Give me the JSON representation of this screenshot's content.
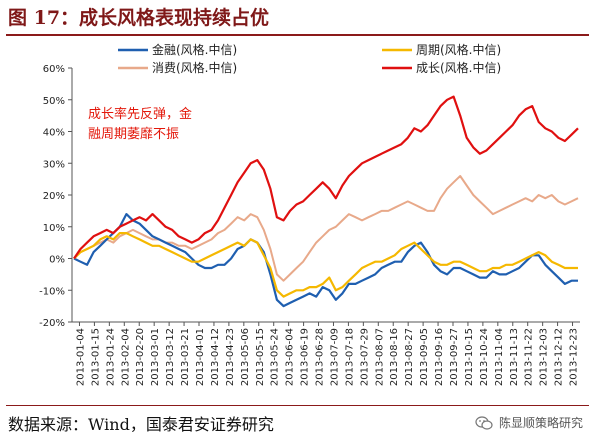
{
  "header": {
    "title": "图 17：成长风格表现持续占优"
  },
  "footer": {
    "source": "数据来源：Wind，国泰君安证券研究",
    "watermark": "陈显顺策略研究"
  },
  "icons": {
    "watermark_icon": "wechat-icon"
  },
  "chart_data": {
    "type": "line",
    "title": "",
    "xlabel": "",
    "ylabel": "",
    "ylim": [
      -20,
      60
    ],
    "y_ticks": [
      "-20%",
      "-10%",
      "0%",
      "10%",
      "20%",
      "30%",
      "40%",
      "50%",
      "60%"
    ],
    "x_ticks": [
      "2013-01-04",
      "2013-01-15",
      "2013-01-24",
      "2013-02-04",
      "2013-02-20",
      "2013-03-01",
      "2013-03-12",
      "2013-03-21",
      "2013-04-01",
      "2013-04-12",
      "2013-04-23",
      "2013-05-06",
      "2013-05-15",
      "2013-05-24",
      "2013-06-04",
      "2013-06-19",
      "2013-06-28",
      "2013-07-09",
      "2013-07-18",
      "2013-07-29",
      "2013-08-07",
      "2013-08-16",
      "2013-08-27",
      "2013-09-05",
      "2013-09-16",
      "2013-09-27",
      "2013-10-15",
      "2013-10-24",
      "2013-11-04",
      "2013-11-13",
      "2013-11-22",
      "2013-12-03",
      "2013-12-12",
      "2013-12-23"
    ],
    "legend_position": "top",
    "grid": false,
    "annotation": {
      "lines": [
        "成长率先反弹，金",
        "融周期萎靡不振"
      ],
      "color": "#e3170a"
    },
    "series": [
      {
        "name": "金融(风格.中信)",
        "color": "#1f5fb0",
        "values": [
          0,
          -1,
          -2,
          2,
          4,
          6,
          8,
          10,
          14,
          12,
          11,
          9,
          7,
          6,
          5,
          4,
          3,
          2,
          0,
          -2,
          -3,
          -3,
          -2,
          -2,
          0,
          3,
          4,
          6,
          5,
          2,
          -5,
          -13,
          -15,
          -14,
          -13,
          -12,
          -11,
          -12,
          -9,
          -10,
          -13,
          -11,
          -8,
          -8,
          -7,
          -6,
          -5,
          -3,
          -2,
          -1,
          -1,
          2,
          4,
          5,
          2,
          -2,
          -4,
          -5,
          -3,
          -3,
          -4,
          -5,
          -6,
          -6,
          -4,
          -5,
          -5,
          -4,
          -3,
          -1,
          1,
          1,
          -2,
          -4,
          -6,
          -8,
          -7,
          -7
        ]
      },
      {
        "name": "周期(风格.中信)",
        "color": "#f5b800",
        "values": [
          0,
          2,
          3,
          4,
          6,
          7,
          6,
          8,
          8,
          7,
          6,
          5,
          4,
          4,
          3,
          2,
          1,
          0,
          -1,
          -1,
          0,
          1,
          2,
          3,
          4,
          5,
          4,
          6,
          5,
          1,
          -3,
          -10,
          -12,
          -11,
          -10,
          -10,
          -9,
          -9,
          -8,
          -6,
          -10,
          -9,
          -7,
          -5,
          -3,
          -2,
          -1,
          -1,
          0,
          1,
          3,
          4,
          5,
          3,
          1,
          -1,
          -2,
          -2,
          -1,
          -1,
          -2,
          -3,
          -4,
          -4,
          -3,
          -3,
          -2,
          -2,
          -1,
          0,
          1,
          2,
          1,
          -1,
          -2,
          -3,
          -3,
          -3
        ]
      },
      {
        "name": "消费(风格.中信)",
        "color": "#e8a98a",
        "values": [
          0,
          2,
          3,
          4,
          5,
          6,
          5,
          7,
          8,
          9,
          8,
          7,
          6,
          6,
          5,
          5,
          4,
          4,
          3,
          4,
          5,
          6,
          8,
          9,
          11,
          13,
          12,
          14,
          13,
          9,
          3,
          -5,
          -7,
          -5,
          -3,
          -1,
          2,
          5,
          7,
          9,
          10,
          12,
          14,
          13,
          12,
          13,
          14,
          15,
          15,
          16,
          17,
          18,
          17,
          16,
          15,
          15,
          19,
          22,
          24,
          26,
          23,
          20,
          18,
          16,
          14,
          15,
          16,
          17,
          18,
          19,
          18,
          20,
          19,
          20,
          18,
          17,
          18,
          19
        ]
      },
      {
        "name": "成长(风格.中信)",
        "color": "#e01010",
        "values": [
          0,
          3,
          5,
          7,
          8,
          9,
          8,
          10,
          11,
          12,
          13,
          12,
          14,
          12,
          10,
          9,
          7,
          6,
          5,
          6,
          8,
          9,
          12,
          16,
          20,
          24,
          27,
          30,
          31,
          28,
          22,
          13,
          12,
          15,
          17,
          18,
          20,
          22,
          24,
          22,
          19,
          23,
          26,
          28,
          30,
          31,
          32,
          33,
          34,
          35,
          36,
          38,
          41,
          40,
          42,
          45,
          48,
          50,
          51,
          45,
          38,
          35,
          33,
          34,
          36,
          38,
          40,
          42,
          45,
          47,
          48,
          43,
          41,
          40,
          38,
          37,
          39,
          41
        ]
      }
    ]
  }
}
